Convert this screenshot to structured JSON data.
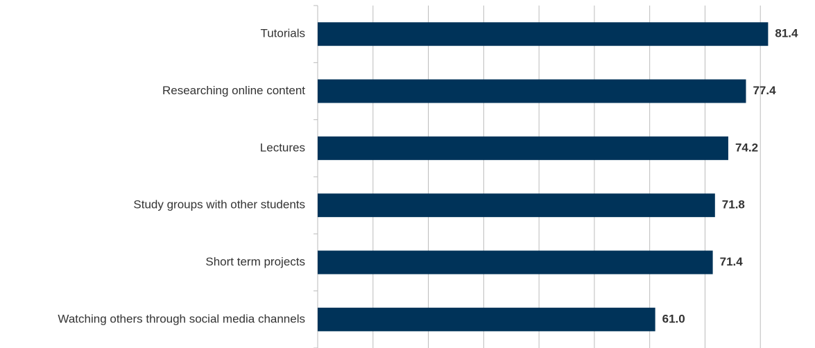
{
  "chart_data": {
    "type": "bar",
    "orientation": "horizontal",
    "categories": [
      "Tutorials",
      "Researching online content",
      "Lectures",
      "Study groups with other students",
      "Short term projects",
      "Watching others through social media channels"
    ],
    "values": [
      81.4,
      77.4,
      74.2,
      71.8,
      71.4,
      61.0
    ],
    "value_labels": [
      "81.4",
      "77.4",
      "74.2",
      "71.8",
      "71.4",
      "61.0"
    ],
    "color": "#003359",
    "xlim": [
      0,
      90
    ],
    "xticks": [
      0,
      10,
      20,
      30,
      40,
      50,
      60,
      70,
      80
    ],
    "grid": true
  }
}
